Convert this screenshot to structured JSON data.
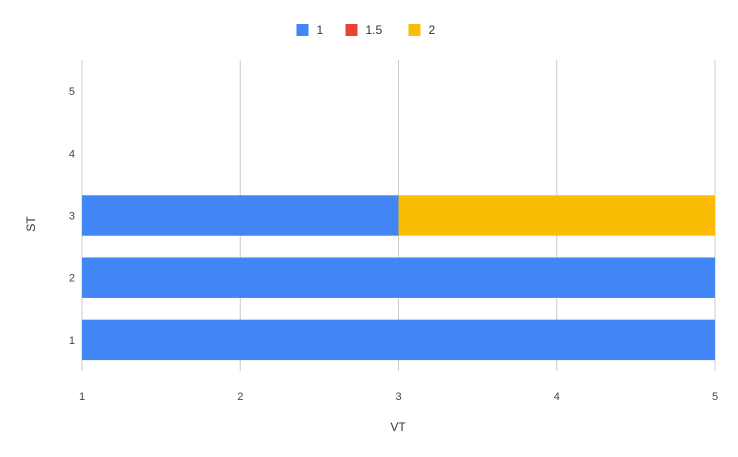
{
  "chart_data": {
    "type": "bar",
    "orientation": "horizontal",
    "stacked": true,
    "title": "",
    "xlabel": "VT",
    "ylabel": "ST",
    "xlim": [
      1,
      5
    ],
    "ylim": [
      0.5,
      5.5
    ],
    "x_ticks": [
      "1",
      "2",
      "3",
      "4",
      "5"
    ],
    "categories": [
      "1",
      "2",
      "3",
      "4",
      "5"
    ],
    "grid": "vertical",
    "legend_position": "top",
    "series": [
      {
        "name": "1",
        "color": "#4285F4",
        "values": [
          5,
          5,
          3,
          null,
          null
        ]
      },
      {
        "name": "1.5",
        "color": "#EA4335",
        "values": [
          null,
          null,
          null,
          null,
          null
        ]
      },
      {
        "name": "2",
        "color": "#FBBC04",
        "values": [
          null,
          null,
          5,
          null,
          null
        ]
      }
    ]
  }
}
